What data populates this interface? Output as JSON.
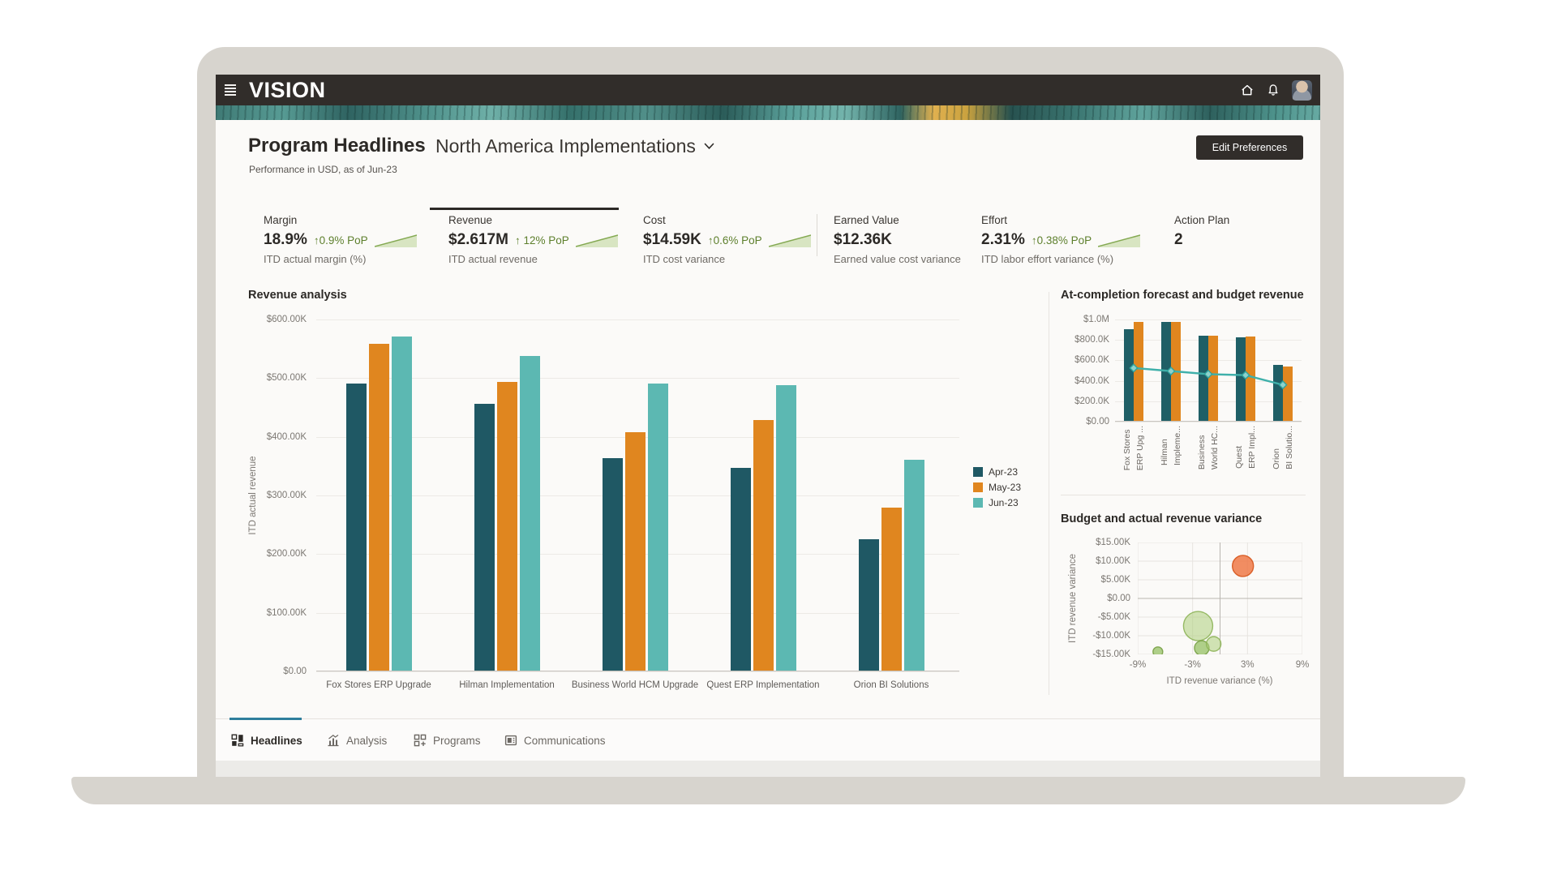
{
  "window": {
    "brand": "VISION"
  },
  "page": {
    "title": "Program Headlines",
    "program_selector": "North America Implementations",
    "subtitle": "Performance in USD, as of Jun-23",
    "edit_preferences": "Edit Preferences"
  },
  "kpis": [
    {
      "label": "Margin",
      "value": "18.9%",
      "delta": "0.9% PoP",
      "sub": "ITD actual margin (%)",
      "selected": false
    },
    {
      "label": "Revenue",
      "value": "$2.617M",
      "delta": "12% PoP",
      "sub": "ITD actual revenue",
      "selected": true
    },
    {
      "label": "Cost",
      "value": "$14.59K",
      "delta": "0.6% PoP",
      "sub": "ITD cost variance",
      "selected": false
    },
    {
      "label": "Earned Value",
      "value": "$12.36K",
      "delta": null,
      "sub": "Earned value cost variance",
      "selected": false
    },
    {
      "label": "Effort",
      "value": "2.31%",
      "delta": "0.38% PoP",
      "sub": "ITD labor effort variance (%)",
      "selected": false
    },
    {
      "label": "Action Plan",
      "value": "2",
      "delta": null,
      "sub": null,
      "selected": false
    }
  ],
  "footer_tabs": [
    {
      "label": "Headlines",
      "active": true
    },
    {
      "label": "Analysis",
      "active": false
    },
    {
      "label": "Programs",
      "active": false
    },
    {
      "label": "Communications",
      "active": false
    }
  ],
  "colors": {
    "accent_tab": "#2e7e9c",
    "kpi_green": "#5d7f2c",
    "header_bg": "#312d2a"
  },
  "chart_data": [
    {
      "type": "bar",
      "title": "Revenue analysis",
      "ylabel": "ITD actual revenue",
      "unit": "USD thousands",
      "ylim": [
        0,
        600
      ],
      "grid": true,
      "legend_position": "right",
      "yticks": [
        "$600.00K",
        "$500.00K",
        "$400.00K",
        "$300.00K",
        "$200.00K",
        "$100.00K",
        "$0.00"
      ],
      "categories": [
        "Fox Stores ERP Upgrade",
        "Hilman Implementation",
        "Business World HCM Upgrade",
        "Quest ERP Implementation",
        "Orion BI Solutions"
      ],
      "series": [
        {
          "name": "Apr-23",
          "color": "#1f5864",
          "values": [
            490,
            455,
            362,
            345,
            224
          ]
        },
        {
          "name": "May-23",
          "color": "#e0861f",
          "values": [
            557,
            492,
            406,
            427,
            278
          ]
        },
        {
          "name": "Jun-23",
          "color": "#5cb8b2",
          "values": [
            570,
            537,
            490,
            486,
            360
          ]
        }
      ]
    },
    {
      "type": "bar+line",
      "title": "At-completion forecast and budget revenue",
      "unit": "USD thousands",
      "ylim": [
        0,
        1000
      ],
      "yticks": [
        "$1.0M",
        "$800.0K",
        "$600.0K",
        "$400.0K",
        "$200.0K",
        "$0.00"
      ],
      "categories": [
        {
          "line1": "Fox Stores",
          "line2": "ERP Upg ..."
        },
        {
          "line1": "Hilman",
          "line2": "Impleme..."
        },
        {
          "line1": "Business",
          "line2": "World HC..."
        },
        {
          "line1": "Quest",
          "line2": "ERP Impl..."
        },
        {
          "line1": "Orion",
          "line2": "BI Solutio..."
        }
      ],
      "series": [
        {
          "name": "series-teal",
          "color": "#1f5f66",
          "values": [
            900,
            965,
            830,
            820,
            550
          ]
        },
        {
          "name": "series-orange",
          "color": "#e0861f",
          "values": [
            970,
            970,
            835,
            825,
            535
          ]
        }
      ],
      "line_series": {
        "color": "#3fb0aa",
        "marker": "diamond",
        "values": [
          525,
          495,
          465,
          455,
          360
        ]
      }
    },
    {
      "type": "bubble",
      "title": "Budget and actual revenue variance",
      "xlabel": "ITD revenue variance (%)",
      "ylabel": "ITD revenue variance",
      "xlim": [
        -9,
        9
      ],
      "ylim": [
        -15,
        15
      ],
      "xticks": [
        "-9%",
        "-3%",
        "3%",
        "9%"
      ],
      "xtick_values": [
        -9,
        -3,
        3,
        9
      ],
      "yticks": [
        "$15.00K",
        "$10.00K",
        "$5.00K",
        "$0.00",
        "-$5.00K",
        "-$10.00K",
        "-$15.00K"
      ],
      "points": [
        {
          "x": 2.5,
          "y_k": 8.7,
          "r": 13,
          "fill": "rgba(238,121,72,0.85)",
          "stroke": "#d95f28"
        },
        {
          "x": -2.4,
          "y_k": -7.4,
          "r": 18,
          "fill": "rgba(173,206,122,0.55)",
          "stroke": "rgba(141,180,88,0.9)"
        },
        {
          "x": -2.0,
          "y_k": -13.3,
          "r": 9,
          "fill": "rgba(150,192,100,0.75)",
          "stroke": "rgba(120,160,70,0.9)"
        },
        {
          "x": -0.7,
          "y_k": -12.2,
          "r": 9,
          "fill": "rgba(173,206,122,0.55)",
          "stroke": "rgba(141,180,88,0.9)"
        },
        {
          "x": -6.8,
          "y_k": -14.3,
          "r": 6,
          "fill": "rgba(150,192,100,0.75)",
          "stroke": "rgba(120,160,70,0.9)"
        }
      ]
    }
  ]
}
